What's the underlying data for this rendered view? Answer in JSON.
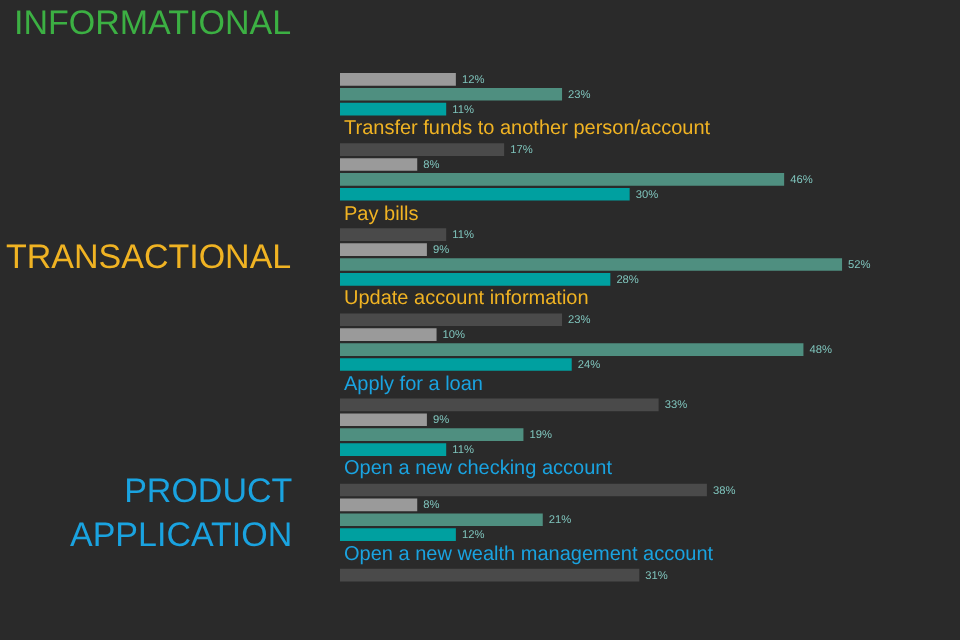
{
  "chart_data": {
    "type": "bar",
    "orientation": "horizontal",
    "legend": false,
    "tick_labels": false,
    "categories": [
      null,
      "Transfer funds to another person/account",
      "Pay bills",
      "Update account information",
      "Apply for a loan",
      "Open a new checking account",
      "Open a new wealth management account"
    ],
    "series": [
      {
        "color": "#4a4a4a",
        "values": [
          null,
          17,
          11,
          23,
          33,
          38,
          31
        ],
        "value_labels": [
          null,
          "17%",
          "11%",
          "23%",
          "33%",
          "38%",
          "31%"
        ]
      },
      {
        "color": "#9a9a9a",
        "values": [
          12,
          8,
          9,
          10,
          9,
          8,
          null
        ],
        "value_labels": [
          "12%",
          "8%",
          "9%",
          "10%",
          "9%",
          "8%",
          null
        ]
      },
      {
        "color": "#4f8f80",
        "values": [
          23,
          46,
          52,
          48,
          19,
          21,
          null
        ],
        "value_labels": [
          "23%",
          "46%",
          "52%",
          "48%",
          "19%",
          "21%",
          null
        ]
      },
      {
        "color": "#00a0a0",
        "values": [
          11,
          30,
          28,
          24,
          11,
          12,
          null
        ],
        "value_labels": [
          "11%",
          "30%",
          "28%",
          "24%",
          "11%",
          "12%",
          null
        ]
      }
    ],
    "annotations": [
      "INFORMATIONAL",
      "TRANSACTIONAL",
      "PRODUCT\nAPPLICATION"
    ]
  }
}
